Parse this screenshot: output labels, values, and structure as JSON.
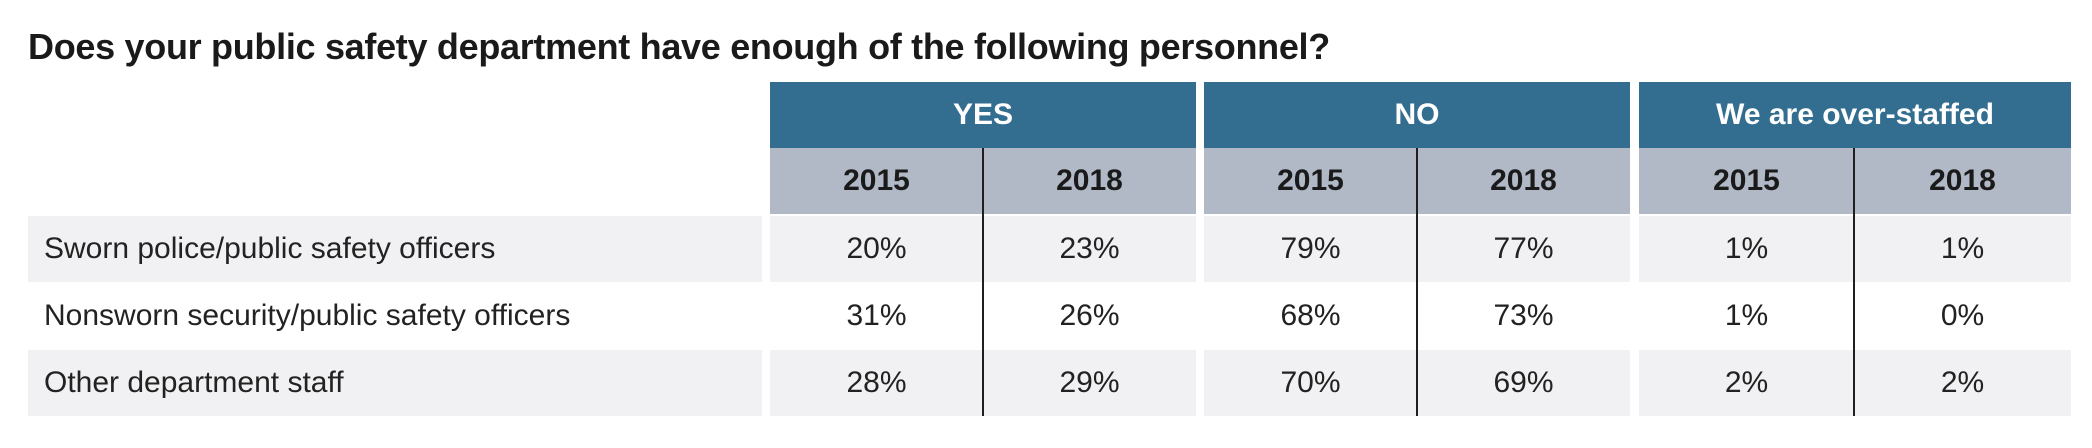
{
  "chart_data": {
    "type": "table",
    "title": "Does your public safety department have enough of the following personnel?",
    "groups": [
      "YES",
      "NO",
      "We are over-staffed"
    ],
    "years": [
      "2015",
      "2018"
    ],
    "rows": [
      {
        "label": "Sworn police/public safety officers",
        "values": [
          "20%",
          "23%",
          "79%",
          "77%",
          "1%",
          "1%"
        ]
      },
      {
        "label": "Nonsworn security/public safety officers",
        "values": [
          "31%",
          "26%",
          "68%",
          "73%",
          "1%",
          "0%"
        ]
      },
      {
        "label": "Other department staff",
        "values": [
          "28%",
          "29%",
          "70%",
          "69%",
          "2%",
          "2%"
        ]
      }
    ]
  },
  "colors": {
    "group_header_bg": "#336e90",
    "year_header_bg": "#b1b9c7",
    "shaded_row_bg": "#f1f1f3"
  }
}
